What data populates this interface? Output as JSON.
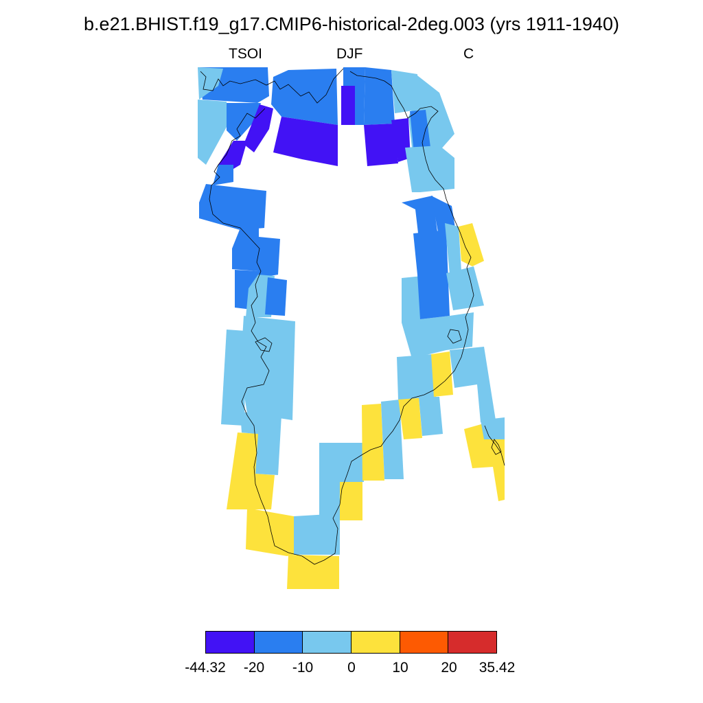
{
  "header": {
    "title": "b.e21.BHIST.f19_g17.CMIP6-historical-2deg.003 (yrs 1911-1940)",
    "left_label": "TSOI",
    "center_label": "DJF",
    "right_label": "C"
  },
  "map": {
    "variable": "TSOI",
    "season": "DJF",
    "units": "C",
    "region": "Greenland",
    "ocean_fill": "white",
    "coastline": "thin black line"
  },
  "colorbar": {
    "colors": [
      "#4212f5",
      "#2a7ef0",
      "#78c8ee",
      "#fde23c",
      "#fd5a02",
      "#d62c2c"
    ],
    "labels": [
      "-44.32",
      "-20",
      "-10",
      "0",
      "10",
      "20",
      "35.42"
    ]
  }
}
